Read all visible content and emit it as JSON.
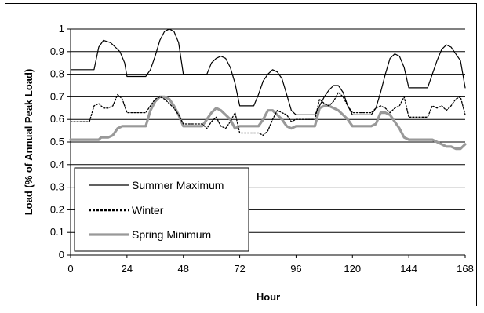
{
  "chart_data": {
    "type": "line",
    "title": "",
    "xlabel": "Hour",
    "ylabel": "Load (% of Annual Peak Load)",
    "xlim": [
      0,
      168
    ],
    "ylim": [
      0,
      1
    ],
    "xticks": [
      0,
      24,
      48,
      72,
      96,
      120,
      144,
      168
    ],
    "yticks": [
      0,
      0.1,
      0.2,
      0.3,
      0.4,
      0.5,
      0.6,
      0.7,
      0.8,
      0.9,
      1
    ],
    "xtick_labels": [
      "0",
      "24",
      "48",
      "72",
      "96",
      "120",
      "144",
      "168"
    ],
    "ytick_labels": [
      "0",
      "0.1",
      "0.2",
      "0.3",
      "0.4",
      "0.5",
      "0.6",
      "0.7",
      "0.8",
      "0.9",
      "1"
    ],
    "grid": "horizontal",
    "legend_position": "bottom-left",
    "series": [
      {
        "name": "Summer Maximum",
        "color": "#000000",
        "style": "solid-thin",
        "x": [
          0,
          10,
          12,
          14,
          17,
          19,
          21,
          23,
          24,
          26,
          28,
          32,
          34,
          36,
          38,
          40,
          42,
          44,
          46,
          48,
          52,
          58,
          60,
          62,
          64,
          66,
          68,
          70,
          72,
          78,
          80,
          82,
          84,
          86,
          88,
          90,
          92,
          94,
          96,
          104,
          106,
          108,
          110,
          112,
          114,
          116,
          118,
          120,
          128,
          130,
          132,
          134,
          136,
          138,
          140,
          142,
          144,
          152,
          154,
          156,
          158,
          160,
          162,
          164,
          166,
          168
        ],
        "y": [
          0.82,
          0.82,
          0.92,
          0.95,
          0.94,
          0.92,
          0.9,
          0.85,
          0.79,
          0.79,
          0.79,
          0.79,
          0.82,
          0.88,
          0.95,
          0.99,
          1.0,
          0.99,
          0.94,
          0.8,
          0.8,
          0.8,
          0.85,
          0.87,
          0.88,
          0.87,
          0.83,
          0.76,
          0.66,
          0.66,
          0.71,
          0.77,
          0.8,
          0.82,
          0.81,
          0.78,
          0.71,
          0.64,
          0.62,
          0.62,
          0.66,
          0.7,
          0.73,
          0.75,
          0.75,
          0.72,
          0.66,
          0.62,
          0.62,
          0.65,
          0.72,
          0.8,
          0.87,
          0.89,
          0.88,
          0.83,
          0.74,
          0.74,
          0.8,
          0.86,
          0.91,
          0.93,
          0.92,
          0.89,
          0.86,
          0.74
        ]
      },
      {
        "name": "Winter",
        "color": "#000000",
        "style": "dotted",
        "x": [
          0,
          8,
          10,
          12,
          14,
          16,
          18,
          20,
          22,
          24,
          32,
          34,
          36,
          38,
          40,
          42,
          44,
          46,
          48,
          56,
          58,
          60,
          62,
          64,
          66,
          68,
          70,
          72,
          80,
          82,
          84,
          86,
          88,
          90,
          92,
          94,
          96,
          104,
          106,
          108,
          110,
          112,
          114,
          116,
          118,
          120,
          128,
          130,
          132,
          134,
          136,
          138,
          140,
          142,
          144,
          152,
          154,
          156,
          158,
          160,
          162,
          164,
          166,
          168
        ],
        "y": [
          0.59,
          0.59,
          0.66,
          0.67,
          0.65,
          0.65,
          0.66,
          0.71,
          0.69,
          0.63,
          0.63,
          0.66,
          0.69,
          0.7,
          0.69,
          0.67,
          0.65,
          0.62,
          0.58,
          0.58,
          0.56,
          0.59,
          0.61,
          0.57,
          0.56,
          0.59,
          0.63,
          0.54,
          0.54,
          0.53,
          0.55,
          0.6,
          0.64,
          0.63,
          0.62,
          0.59,
          0.6,
          0.6,
          0.69,
          0.67,
          0.66,
          0.68,
          0.72,
          0.7,
          0.66,
          0.63,
          0.63,
          0.65,
          0.66,
          0.65,
          0.63,
          0.65,
          0.66,
          0.7,
          0.61,
          0.61,
          0.66,
          0.65,
          0.66,
          0.64,
          0.66,
          0.69,
          0.7,
          0.62
        ]
      },
      {
        "name": "Spring Minimum",
        "color": "#999999",
        "style": "solid-thick",
        "x": [
          0,
          12,
          13,
          16,
          18,
          20,
          22,
          24,
          32,
          34,
          36,
          38,
          40,
          42,
          44,
          46,
          48,
          56,
          58,
          60,
          62,
          64,
          66,
          68,
          70,
          72,
          80,
          82,
          84,
          86,
          88,
          90,
          92,
          94,
          96,
          104,
          106,
          108,
          110,
          112,
          114,
          116,
          118,
          120,
          128,
          130,
          132,
          134,
          136,
          138,
          140,
          142,
          144,
          152,
          154,
          156,
          158,
          160,
          162,
          164,
          166,
          168
        ],
        "y": [
          0.51,
          0.51,
          0.52,
          0.52,
          0.53,
          0.56,
          0.57,
          0.57,
          0.57,
          0.64,
          0.68,
          0.7,
          0.7,
          0.69,
          0.66,
          0.62,
          0.57,
          0.57,
          0.6,
          0.63,
          0.65,
          0.64,
          0.62,
          0.6,
          0.56,
          0.57,
          0.57,
          0.6,
          0.64,
          0.64,
          0.62,
          0.6,
          0.57,
          0.56,
          0.57,
          0.57,
          0.65,
          0.66,
          0.66,
          0.65,
          0.64,
          0.62,
          0.6,
          0.57,
          0.57,
          0.58,
          0.63,
          0.63,
          0.62,
          0.59,
          0.56,
          0.52,
          0.51,
          0.51,
          0.51,
          0.5,
          0.49,
          0.48,
          0.48,
          0.47,
          0.47,
          0.49
        ]
      }
    ]
  }
}
